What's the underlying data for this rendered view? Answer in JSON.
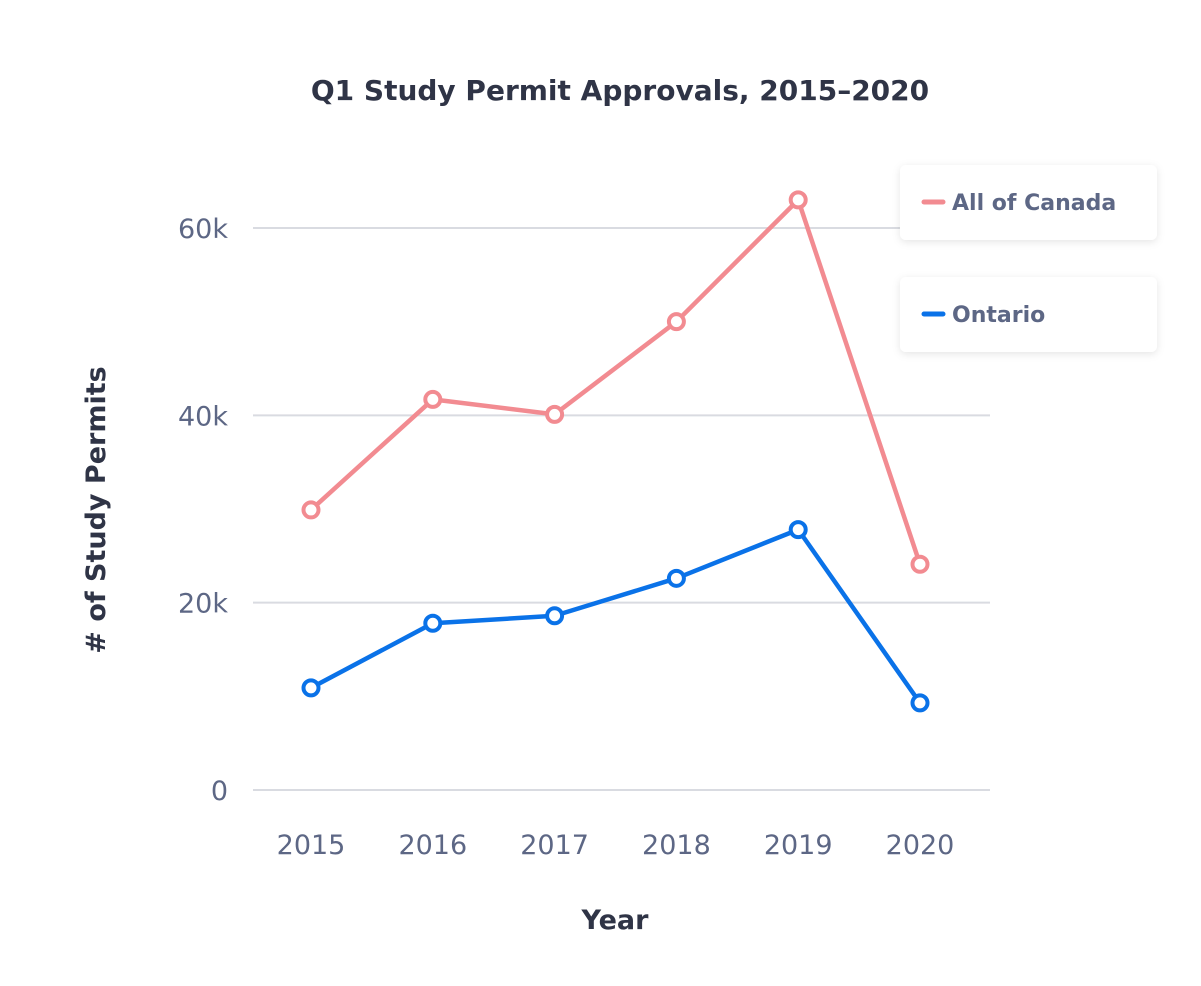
{
  "chart_data": {
    "type": "line",
    "title": "Q1 Study Permit Approvals, 2015–2020",
    "xlabel": "Year",
    "ylabel": "# of Study Permits",
    "categories": [
      "2015",
      "2016",
      "2017",
      "2018",
      "2019",
      "2020"
    ],
    "ylim": [
      0,
      60000
    ],
    "yticks": [
      0,
      20000,
      40000,
      60000
    ],
    "ytick_labels": [
      "0",
      "20k",
      "40k",
      "60k"
    ],
    "grid": true,
    "legend_position": "top-right",
    "series": [
      {
        "name": "All of Canada",
        "color": "#f28b91",
        "values": [
          29900,
          41700,
          40100,
          50000,
          63000,
          24100
        ]
      },
      {
        "name": "Ontario",
        "color": "#0a72e8",
        "values": [
          10900,
          17800,
          18600,
          22600,
          27800,
          9300
        ]
      }
    ]
  }
}
